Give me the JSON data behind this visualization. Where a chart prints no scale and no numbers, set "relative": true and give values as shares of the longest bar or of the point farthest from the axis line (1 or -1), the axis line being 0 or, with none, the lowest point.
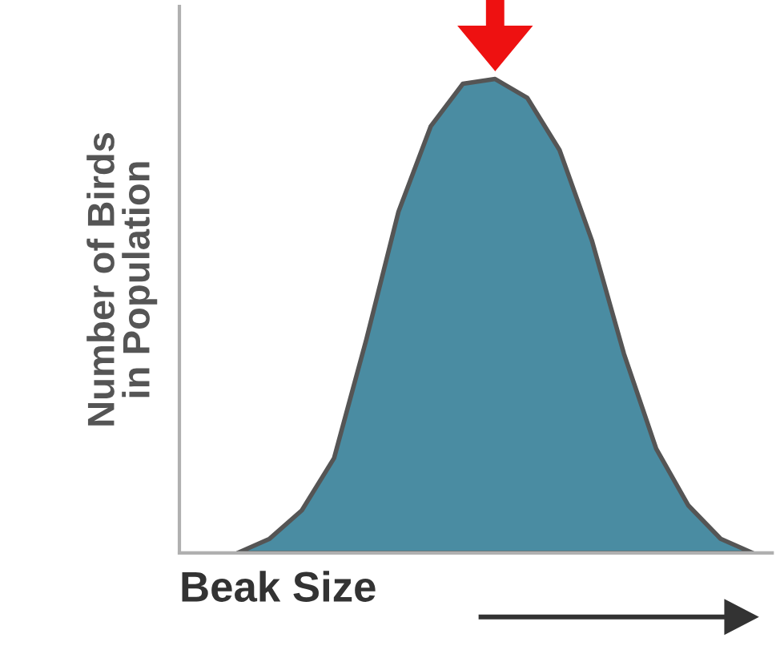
{
  "chart_data": {
    "type": "area",
    "relative": true,
    "xlabel": "Beak Size",
    "ylabel": "Number of Birds\nin Population",
    "categories": [
      null,
      null,
      null,
      null,
      null,
      null,
      null,
      null,
      null,
      null,
      null,
      null,
      null,
      null,
      null,
      null,
      null
    ],
    "series": [
      {
        "color": "#4a8ca2",
        "values": [
          0,
          0.03,
          0.09,
          0.2,
          0.45,
          0.72,
          0.9,
          0.99,
          1.0,
          0.96,
          0.85,
          0.66,
          0.42,
          0.22,
          0.1,
          0.03,
          0
        ]
      }
    ],
    "tick_labels": false
  }
}
